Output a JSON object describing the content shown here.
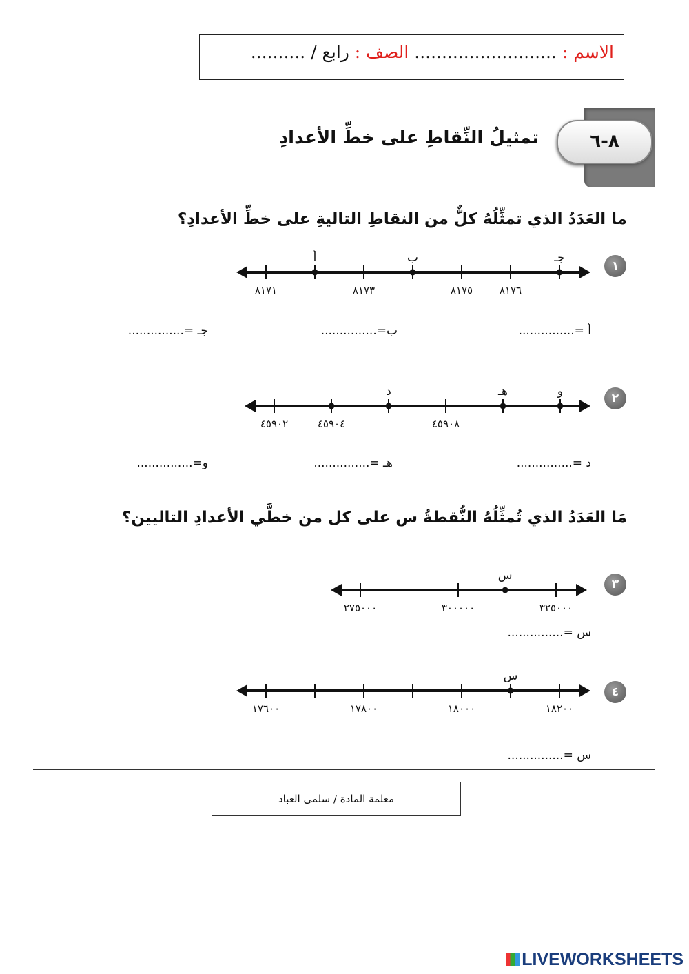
{
  "header": {
    "name_label": "الاسم :",
    "name_dots": "..........................",
    "class_label": "الصف :",
    "class_value": "رابع /",
    "class_dots": ".........."
  },
  "lesson": {
    "number": "٨-٦",
    "title": "تمثيلُ النِّقاطِ على خطِّ الأعدادِ"
  },
  "section1": {
    "question": "ما العَدَدُ الذي تمثِّلُهُ كلٌّ من النقاطِ التاليةِ على خطِّ الأعدادِ؟"
  },
  "section2": {
    "question": "مَا العَدَدُ الذي تُمثِّلُهُ النُّقطةُ س على كل من خطَّي الأعدادِ التاليين؟"
  },
  "exercises": [
    {
      "badge": "١",
      "ticks": [
        8171,
        8172,
        8173,
        8174,
        8175,
        8176,
        8177
      ],
      "tick_labels": {
        "8171": "٨١٧١",
        "8173": "٨١٧٣",
        "8175": "٨١٧٥",
        "8176": "٨١٧٦"
      },
      "points": [
        {
          "at": 8172,
          "label": "أ"
        },
        {
          "at": 8174,
          "label": "ب"
        },
        {
          "at": 8177,
          "label": "جـ"
        }
      ],
      "answers": [
        "أ =...............",
        "ب=...............",
        "جـ =..............."
      ]
    },
    {
      "badge": "٢",
      "ticks": [
        45902,
        45904,
        45906,
        45908,
        45910,
        45912
      ],
      "tick_labels": {
        "45902": "٤٥٩٠٢",
        "45904": "٤٥٩٠٤",
        "45908": "٤٥٩٠٨"
      },
      "points": [
        {
          "at": 45904,
          "label": ""
        },
        {
          "at": 45906,
          "label": "د"
        },
        {
          "at": 45910,
          "label": "هـ"
        },
        {
          "at": 45912,
          "label": "و"
        }
      ],
      "answers": [
        "د =...............",
        "هـ =...............",
        "و=..............."
      ]
    },
    {
      "badge": "٣",
      "ticks": [
        275000,
        300000,
        325000
      ],
      "tick_labels": {
        "275000": "٢٧٥٠٠٠",
        "300000": "٣٠٠٠٠٠",
        "325000": "٣٢٥٠٠٠"
      },
      "points": [
        {
          "at": 312000,
          "label": "س"
        }
      ],
      "answers": [
        "س =..............."
      ]
    },
    {
      "badge": "٤",
      "ticks": [
        17600,
        17700,
        17800,
        17900,
        18000,
        18100,
        18200
      ],
      "tick_labels": {
        "17600": "١٧٦٠٠",
        "17800": "١٧٨٠٠",
        "18000": "١٨٠٠٠",
        "18200": "١٨٢٠٠"
      },
      "points": [
        {
          "at": 18100,
          "label": "س"
        }
      ],
      "answers": [
        "س =..............."
      ]
    }
  ],
  "footer": {
    "teacher": "معلمة المادة / سلمى العباد",
    "brand": "LIVEWORKSHEETS"
  }
}
